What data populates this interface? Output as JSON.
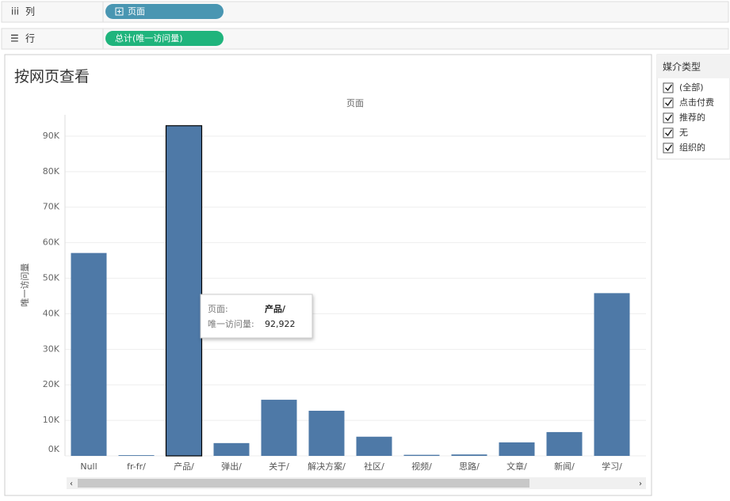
{
  "shelves": {
    "columns": {
      "label": "列",
      "pill": "页面"
    },
    "rows": {
      "label": "行",
      "pill": "总计(唯一访问量)"
    }
  },
  "chart_data": {
    "type": "bar",
    "title": "按网页查看",
    "x_header": "页面",
    "y_label": "唯一访问量",
    "categories": [
      "Null",
      "fr-fr/",
      "产品/",
      "弹出/",
      "关于/",
      "解决方案/",
      "社区/",
      "视频/",
      "思路/",
      "文章/",
      "新闻/",
      "学习/"
    ],
    "values": [
      57100,
      200,
      92922,
      3600,
      15800,
      12700,
      5400,
      300,
      400,
      3800,
      6700,
      45800
    ],
    "color": "#4e79a7",
    "highlight": 2,
    "ylim": [
      0,
      96000
    ],
    "yticks": [
      {
        "value": 0,
        "label": "0K"
      },
      {
        "value": 10000,
        "label": "10K"
      },
      {
        "value": 20000,
        "label": "20K"
      },
      {
        "value": 30000,
        "label": "30K"
      },
      {
        "value": 40000,
        "label": "40K"
      },
      {
        "value": 50000,
        "label": "50K"
      },
      {
        "value": 60000,
        "label": "60K"
      },
      {
        "value": 70000,
        "label": "70K"
      },
      {
        "value": 80000,
        "label": "80K"
      },
      {
        "value": 90000,
        "label": "90K"
      }
    ],
    "grid": true,
    "tooltip": {
      "field_label": "页面:",
      "category": "产品/",
      "measure_label": "唯一访问量:",
      "value_label": "92,922"
    }
  },
  "filter": {
    "title": "媒介类型",
    "items": [
      "(全部)",
      "点击付费",
      "推荐的",
      "无",
      "组织的"
    ]
  }
}
